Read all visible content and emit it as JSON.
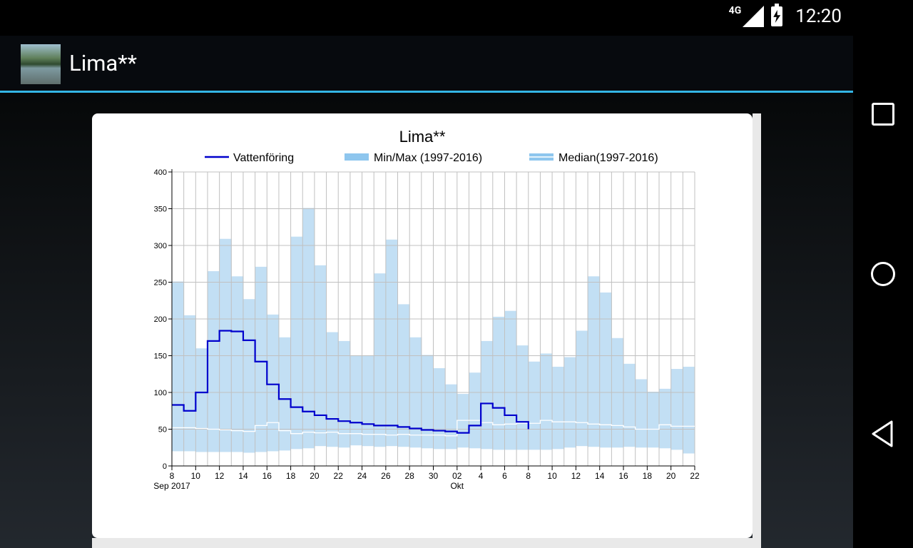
{
  "status_bar": {
    "network": "4G",
    "time": "12:20"
  },
  "app_bar": {
    "title": "Lima**",
    "icon": "river-thumbnail"
  },
  "nav_bar": {
    "buttons": [
      "recents-icon",
      "home-icon",
      "back-icon"
    ]
  },
  "colors": {
    "accent": "#33b5e5",
    "flow": "#0000cc",
    "band": "#c2dff4",
    "legend_band": "#8ec6ee",
    "median": "#ffffff"
  },
  "chart_data": {
    "type": "line",
    "title": "Lima**",
    "legend": [
      "Vattenföring",
      "Min/Max (1997-2016)",
      "Median(1997-2016)"
    ],
    "legend_position": "top",
    "grid": true,
    "ylim": [
      0,
      400
    ],
    "y_ticks": [
      0,
      50,
      100,
      150,
      200,
      250,
      300,
      350,
      400
    ],
    "x_tick_labels": [
      "8",
      "10",
      "12",
      "14",
      "16",
      "18",
      "20",
      "22",
      "24",
      "26",
      "28",
      "30",
      "02",
      "4",
      "6",
      "8",
      "10",
      "12",
      "14",
      "16",
      "18",
      "20",
      "22"
    ],
    "x_sublabels": {
      "start": "Sep 2017",
      "oct": "Okt"
    },
    "days": [
      "2017-09-08",
      "2017-09-09",
      "2017-09-10",
      "2017-09-11",
      "2017-09-12",
      "2017-09-13",
      "2017-09-14",
      "2017-09-15",
      "2017-09-16",
      "2017-09-17",
      "2017-09-18",
      "2017-09-19",
      "2017-09-20",
      "2017-09-21",
      "2017-09-22",
      "2017-09-23",
      "2017-09-24",
      "2017-09-25",
      "2017-09-26",
      "2017-09-27",
      "2017-09-28",
      "2017-09-29",
      "2017-09-30",
      "2017-10-01",
      "2017-10-02",
      "2017-10-03",
      "2017-10-04",
      "2017-10-05",
      "2017-10-06",
      "2017-10-07",
      "2017-10-08",
      "2017-10-09",
      "2017-10-10",
      "2017-10-11",
      "2017-10-12",
      "2017-10-13",
      "2017-10-14",
      "2017-10-15",
      "2017-10-16",
      "2017-10-17",
      "2017-10-18",
      "2017-10-19",
      "2017-10-20",
      "2017-10-21"
    ],
    "series": [
      {
        "name": "Vattenföring",
        "values": [
          83,
          75,
          100,
          170,
          184,
          183,
          171,
          142,
          111,
          91,
          80,
          74,
          69,
          64,
          61,
          59,
          57,
          55,
          55,
          53,
          51,
          49,
          48,
          47,
          45,
          55,
          85,
          79,
          69,
          60
        ]
      },
      {
        "name": "Min/Max (1997-2016)",
        "min": [
          20,
          20,
          19,
          19,
          19,
          19,
          18,
          19,
          20,
          21,
          23,
          24,
          27,
          26,
          25,
          28,
          27,
          26,
          27,
          26,
          25,
          24,
          23,
          23,
          25,
          24,
          23,
          22,
          22,
          22,
          22,
          22,
          23,
          25,
          27,
          26,
          25,
          25,
          26,
          25,
          25,
          24,
          22,
          17
        ],
        "max": [
          251,
          205,
          160,
          265,
          309,
          258,
          227,
          271,
          206,
          175,
          312,
          351,
          273,
          182,
          170,
          150,
          150,
          262,
          308,
          220,
          175,
          151,
          133,
          111,
          98,
          127,
          170,
          203,
          211,
          164,
          142,
          153,
          135,
          148,
          184,
          258,
          236,
          174,
          139,
          118,
          101,
          105,
          132,
          135
        ]
      },
      {
        "name": "Median(1997-2016)",
        "values": [
          52,
          52,
          51,
          50,
          49,
          48,
          47,
          55,
          59,
          48,
          44,
          46,
          45,
          46,
          44,
          44,
          43,
          43,
          42,
          43,
          42,
          42,
          42,
          41,
          62,
          62,
          59,
          56,
          57,
          58,
          58,
          62,
          60,
          60,
          59,
          57,
          56,
          55,
          53,
          50,
          50,
          56,
          54,
          54
        ]
      }
    ]
  }
}
